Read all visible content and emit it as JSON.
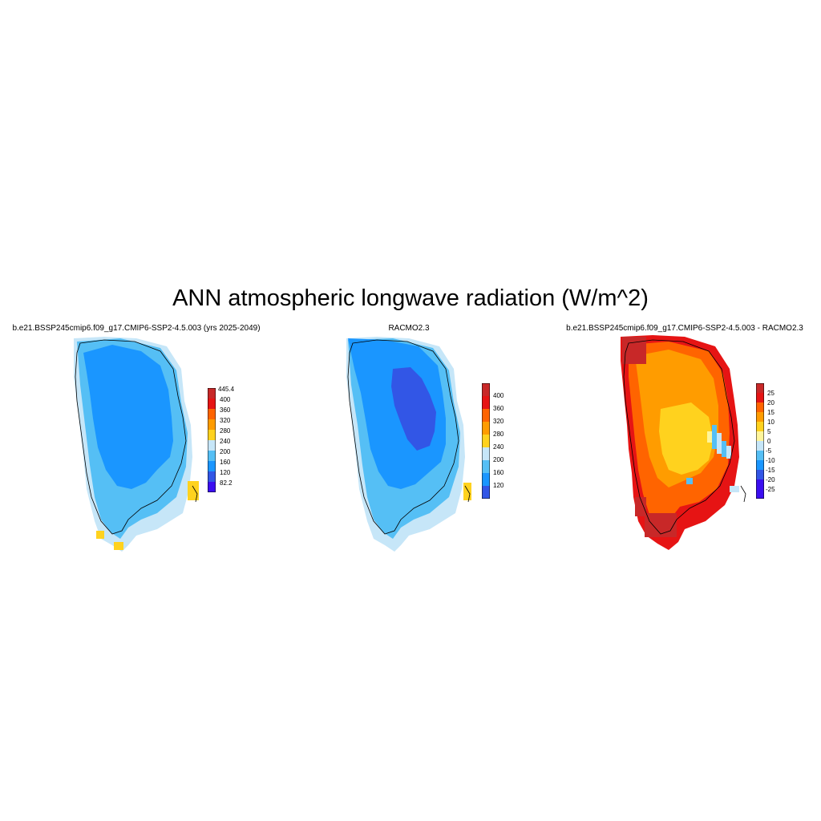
{
  "title": "ANN atmospheric longwave radiation (W/m^2)",
  "colors": {
    "purple": "#3b0ef0",
    "dark_blue": "#3256e6",
    "blue": "#1a96ff",
    "light_blue": "#55bff5",
    "pale_blue": "#c6e6f8",
    "pale_yellow": "#fff59b",
    "yellow": "#ffd21e",
    "orange": "#ff9c00",
    "dark_orange": "#ff6400",
    "red": "#e61414",
    "dark_red": "#c82828"
  },
  "panels": [
    {
      "title": "b.e21.BSSP245cmip6.f09_g17.CMIP6-SSP2-4.5.003 (yrs 2025-2049)",
      "colorbar": {
        "labels": [
          "445.4",
          "400",
          "360",
          "320",
          "280",
          "240",
          "200",
          "160",
          "120",
          "82.2"
        ],
        "colors": [
          "#c82828",
          "#e61414",
          "#ff6400",
          "#ff9c00",
          "#ffd21e",
          "#c6e6f8",
          "#55bff5",
          "#1a96ff",
          "#3256e6",
          "#3b0ef0"
        ]
      }
    },
    {
      "title": "RACMO2.3",
      "colorbar": {
        "labels": [
          "400",
          "360",
          "320",
          "280",
          "240",
          "200",
          "160",
          "120"
        ],
        "colors": [
          "#c82828",
          "#e61414",
          "#ff6400",
          "#ff9c00",
          "#ffd21e",
          "#c6e6f8",
          "#55bff5",
          "#1a96ff",
          "#3256e6"
        ]
      }
    },
    {
      "title": "b.e21.BSSP245cmip6.f09_g17.CMIP6-SSP2-4.5.003 - RACMO2.3",
      "colorbar": {
        "labels": [
          "25",
          "20",
          "15",
          "10",
          "5",
          "0",
          "-5",
          "-10",
          "-15",
          "-20",
          "-25"
        ],
        "colors": [
          "#c82828",
          "#e61414",
          "#ff6400",
          "#ff9c00",
          "#ffd21e",
          "#fff59b",
          "#c6e6f8",
          "#55bff5",
          "#1a96ff",
          "#3256e6",
          "#3b0ef0",
          "#3b0ef0"
        ]
      }
    }
  ]
}
